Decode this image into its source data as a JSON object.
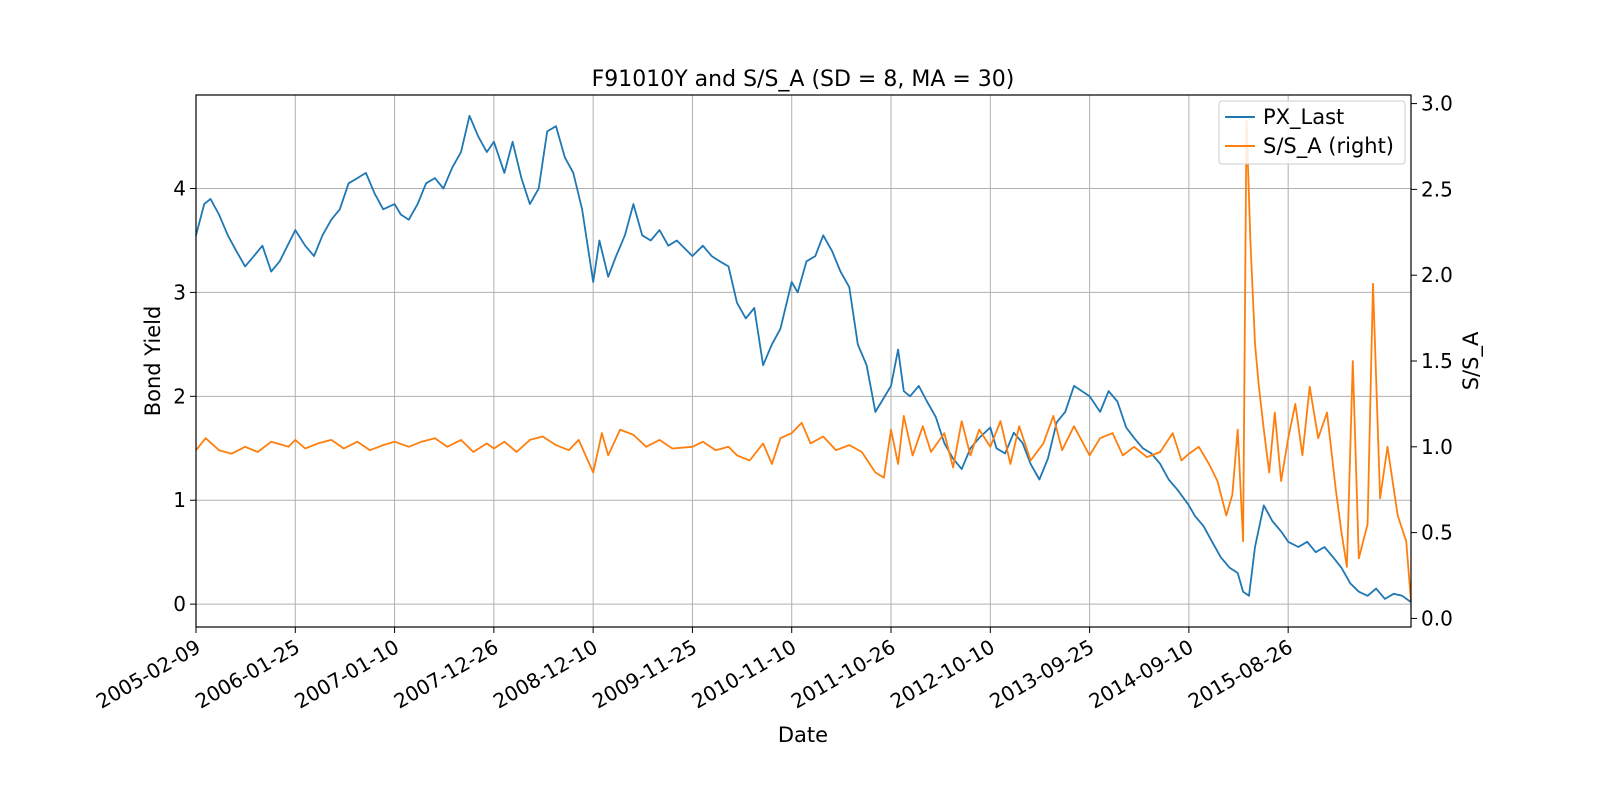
{
  "chart_data": {
    "type": "line",
    "title": "F91010Y and S/S_A (SD = 8, MA = 30)",
    "xlabel": "Date",
    "ylabel": "Bond Yield",
    "ylabel_right": "S/S_A",
    "x_ticks": [
      "2005-02-09",
      "2006-01-25",
      "2007-01-10",
      "2007-12-26",
      "2008-12-10",
      "2009-11-25",
      "2010-11-10",
      "2011-10-26",
      "2012-10-10",
      "2013-09-25",
      "2014-09-10",
      "2015-08-26"
    ],
    "xlim": [
      "2005-02-09",
      "2016-11-01"
    ],
    "ylim": [
      -0.22,
      4.9
    ],
    "ylim_right": [
      -0.05,
      3.05
    ],
    "y_ticks": [
      0,
      1,
      2,
      3,
      4
    ],
    "y_ticks_right": [
      0.0,
      0.5,
      1.0,
      1.5,
      2.0,
      2.5,
      3.0
    ],
    "grid": true,
    "legend_position": "top-right",
    "series": [
      {
        "name": "PX_Last",
        "axis": "left",
        "color": "#1f77b4",
        "points": [
          [
            "2005-02-09",
            3.55
          ],
          [
            "2005-03-10",
            3.85
          ],
          [
            "2005-04-01",
            3.9
          ],
          [
            "2005-05-01",
            3.75
          ],
          [
            "2005-06-01",
            3.55
          ],
          [
            "2005-07-01",
            3.4
          ],
          [
            "2005-08-01",
            3.25
          ],
          [
            "2005-09-01",
            3.35
          ],
          [
            "2005-10-01",
            3.45
          ],
          [
            "2005-11-01",
            3.2
          ],
          [
            "2005-12-01",
            3.3
          ],
          [
            "2006-01-25",
            3.6
          ],
          [
            "2006-03-01",
            3.45
          ],
          [
            "2006-04-01",
            3.35
          ],
          [
            "2006-05-01",
            3.55
          ],
          [
            "2006-06-01",
            3.7
          ],
          [
            "2006-07-01",
            3.8
          ],
          [
            "2006-08-01",
            4.05
          ],
          [
            "2006-09-01",
            4.1
          ],
          [
            "2006-10-01",
            4.15
          ],
          [
            "2006-11-01",
            3.95
          ],
          [
            "2006-12-01",
            3.8
          ],
          [
            "2007-01-10",
            3.85
          ],
          [
            "2007-02-01",
            3.75
          ],
          [
            "2007-03-01",
            3.7
          ],
          [
            "2007-04-01",
            3.85
          ],
          [
            "2007-05-01",
            4.05
          ],
          [
            "2007-06-01",
            4.1
          ],
          [
            "2007-07-01",
            4.0
          ],
          [
            "2007-08-01",
            4.2
          ],
          [
            "2007-09-01",
            4.35
          ],
          [
            "2007-10-01",
            4.7
          ],
          [
            "2007-11-01",
            4.5
          ],
          [
            "2007-12-01",
            4.35
          ],
          [
            "2007-12-26",
            4.45
          ],
          [
            "2008-02-01",
            4.15
          ],
          [
            "2008-03-01",
            4.45
          ],
          [
            "2008-04-01",
            4.1
          ],
          [
            "2008-05-01",
            3.85
          ],
          [
            "2008-06-01",
            4.0
          ],
          [
            "2008-07-01",
            4.55
          ],
          [
            "2008-08-01",
            4.6
          ],
          [
            "2008-09-01",
            4.3
          ],
          [
            "2008-10-01",
            4.15
          ],
          [
            "2008-11-01",
            3.8
          ],
          [
            "2008-12-10",
            3.1
          ],
          [
            "2009-01-01",
            3.5
          ],
          [
            "2009-02-01",
            3.15
          ],
          [
            "2009-03-01",
            3.35
          ],
          [
            "2009-04-01",
            3.55
          ],
          [
            "2009-05-01",
            3.85
          ],
          [
            "2009-06-01",
            3.55
          ],
          [
            "2009-07-01",
            3.5
          ],
          [
            "2009-08-01",
            3.6
          ],
          [
            "2009-09-01",
            3.45
          ],
          [
            "2009-10-01",
            3.5
          ],
          [
            "2009-11-25",
            3.35
          ],
          [
            "2010-01-01",
            3.45
          ],
          [
            "2010-02-01",
            3.35
          ],
          [
            "2010-03-01",
            3.3
          ],
          [
            "2010-04-01",
            3.25
          ],
          [
            "2010-05-01",
            2.9
          ],
          [
            "2010-06-01",
            2.75
          ],
          [
            "2010-07-01",
            2.85
          ],
          [
            "2010-08-01",
            2.3
          ],
          [
            "2010-09-01",
            2.5
          ],
          [
            "2010-10-01",
            2.65
          ],
          [
            "2010-11-10",
            3.1
          ],
          [
            "2010-12-01",
            3.0
          ],
          [
            "2011-01-01",
            3.3
          ],
          [
            "2011-02-01",
            3.35
          ],
          [
            "2011-03-01",
            3.55
          ],
          [
            "2011-04-01",
            3.4
          ],
          [
            "2011-05-01",
            3.2
          ],
          [
            "2011-06-01",
            3.05
          ],
          [
            "2011-07-01",
            2.5
          ],
          [
            "2011-08-01",
            2.3
          ],
          [
            "2011-09-01",
            1.85
          ],
          [
            "2011-10-26",
            2.1
          ],
          [
            "2011-11-20",
            2.45
          ],
          [
            "2011-12-10",
            2.05
          ],
          [
            "2012-01-01",
            2.0
          ],
          [
            "2012-02-01",
            2.1
          ],
          [
            "2012-03-01",
            1.95
          ],
          [
            "2012-04-01",
            1.8
          ],
          [
            "2012-05-01",
            1.55
          ],
          [
            "2012-06-01",
            1.4
          ],
          [
            "2012-07-01",
            1.3
          ],
          [
            "2012-08-01",
            1.5
          ],
          [
            "2012-09-01",
            1.6
          ],
          [
            "2012-10-10",
            1.7
          ],
          [
            "2012-11-01",
            1.5
          ],
          [
            "2012-12-01",
            1.45
          ],
          [
            "2013-01-01",
            1.65
          ],
          [
            "2013-02-01",
            1.55
          ],
          [
            "2013-03-01",
            1.35
          ],
          [
            "2013-04-01",
            1.2
          ],
          [
            "2013-05-01",
            1.4
          ],
          [
            "2013-06-01",
            1.75
          ],
          [
            "2013-07-01",
            1.85
          ],
          [
            "2013-08-01",
            2.1
          ],
          [
            "2013-09-25",
            2.0
          ],
          [
            "2013-11-01",
            1.85
          ],
          [
            "2013-12-01",
            2.05
          ],
          [
            "2014-01-01",
            1.95
          ],
          [
            "2014-02-01",
            1.7
          ],
          [
            "2014-03-01",
            1.6
          ],
          [
            "2014-04-01",
            1.5
          ],
          [
            "2014-05-01",
            1.45
          ],
          [
            "2014-06-01",
            1.35
          ],
          [
            "2014-07-01",
            1.2
          ],
          [
            "2014-08-01",
            1.1
          ],
          [
            "2014-09-10",
            0.95
          ],
          [
            "2014-10-01",
            0.85
          ],
          [
            "2014-11-01",
            0.75
          ],
          [
            "2014-12-01",
            0.6
          ],
          [
            "2015-01-01",
            0.45
          ],
          [
            "2015-02-01",
            0.35
          ],
          [
            "2015-03-01",
            0.3
          ],
          [
            "2015-03-20",
            0.12
          ],
          [
            "2015-04-10",
            0.08
          ],
          [
            "2015-05-01",
            0.55
          ],
          [
            "2015-06-01",
            0.95
          ],
          [
            "2015-07-01",
            0.8
          ],
          [
            "2015-08-01",
            0.7
          ],
          [
            "2015-08-26",
            0.6
          ],
          [
            "2015-10-01",
            0.55
          ],
          [
            "2015-11-01",
            0.6
          ],
          [
            "2015-12-01",
            0.5
          ],
          [
            "2016-01-01",
            0.55
          ],
          [
            "2016-02-01",
            0.45
          ],
          [
            "2016-03-01",
            0.35
          ],
          [
            "2016-04-01",
            0.2
          ],
          [
            "2016-05-01",
            0.12
          ],
          [
            "2016-06-01",
            0.08
          ],
          [
            "2016-07-01",
            0.15
          ],
          [
            "2016-08-01",
            0.05
          ],
          [
            "2016-09-01",
            0.1
          ],
          [
            "2016-10-01",
            0.08
          ],
          [
            "2016-11-01",
            0.02
          ]
        ]
      },
      {
        "name": "S/S_A (right)",
        "axis": "right",
        "color": "#ff7f0e",
        "points": [
          [
            "2005-02-09",
            0.98
          ],
          [
            "2005-03-15",
            1.05
          ],
          [
            "2005-05-01",
            0.98
          ],
          [
            "2005-06-15",
            0.96
          ],
          [
            "2005-08-01",
            1.0
          ],
          [
            "2005-09-15",
            0.97
          ],
          [
            "2005-11-01",
            1.03
          ],
          [
            "2006-01-01",
            1.0
          ],
          [
            "2006-01-25",
            1.04
          ],
          [
            "2006-03-01",
            0.99
          ],
          [
            "2006-04-15",
            1.02
          ],
          [
            "2006-06-01",
            1.04
          ],
          [
            "2006-07-15",
            0.99
          ],
          [
            "2006-09-01",
            1.03
          ],
          [
            "2006-10-15",
            0.98
          ],
          [
            "2006-12-01",
            1.01
          ],
          [
            "2007-01-10",
            1.03
          ],
          [
            "2007-03-01",
            1.0
          ],
          [
            "2007-04-15",
            1.03
          ],
          [
            "2007-06-01",
            1.05
          ],
          [
            "2007-07-15",
            1.0
          ],
          [
            "2007-09-01",
            1.04
          ],
          [
            "2007-10-15",
            0.97
          ],
          [
            "2007-12-01",
            1.02
          ],
          [
            "2007-12-26",
            0.99
          ],
          [
            "2008-02-01",
            1.03
          ],
          [
            "2008-03-15",
            0.97
          ],
          [
            "2008-05-01",
            1.04
          ],
          [
            "2008-06-15",
            1.06
          ],
          [
            "2008-08-01",
            1.01
          ],
          [
            "2008-09-15",
            0.98
          ],
          [
            "2008-10-20",
            1.04
          ],
          [
            "2008-12-10",
            0.85
          ],
          [
            "2009-01-10",
            1.08
          ],
          [
            "2009-02-01",
            0.95
          ],
          [
            "2009-03-15",
            1.1
          ],
          [
            "2009-05-01",
            1.07
          ],
          [
            "2009-06-15",
            1.0
          ],
          [
            "2009-08-01",
            1.04
          ],
          [
            "2009-09-15",
            0.99
          ],
          [
            "2009-11-25",
            1.0
          ],
          [
            "2010-01-01",
            1.03
          ],
          [
            "2010-02-15",
            0.98
          ],
          [
            "2010-04-01",
            1.0
          ],
          [
            "2010-05-01",
            0.95
          ],
          [
            "2010-06-15",
            0.92
          ],
          [
            "2010-08-01",
            1.02
          ],
          [
            "2010-09-01",
            0.9
          ],
          [
            "2010-10-01",
            1.05
          ],
          [
            "2010-11-10",
            1.08
          ],
          [
            "2010-12-15",
            1.14
          ],
          [
            "2011-01-15",
            1.02
          ],
          [
            "2011-03-01",
            1.06
          ],
          [
            "2011-04-15",
            0.98
          ],
          [
            "2011-06-01",
            1.01
          ],
          [
            "2011-07-15",
            0.97
          ],
          [
            "2011-09-01",
            0.85
          ],
          [
            "2011-10-01",
            0.82
          ],
          [
            "2011-10-26",
            1.1
          ],
          [
            "2011-11-20",
            0.9
          ],
          [
            "2011-12-10",
            1.18
          ],
          [
            "2012-01-10",
            0.95
          ],
          [
            "2012-02-15",
            1.12
          ],
          [
            "2012-03-15",
            0.97
          ],
          [
            "2012-05-01",
            1.08
          ],
          [
            "2012-06-01",
            0.88
          ],
          [
            "2012-07-01",
            1.15
          ],
          [
            "2012-08-01",
            0.95
          ],
          [
            "2012-09-01",
            1.1
          ],
          [
            "2012-10-10",
            1.0
          ],
          [
            "2012-11-15",
            1.15
          ],
          [
            "2012-12-20",
            0.9
          ],
          [
            "2013-01-20",
            1.12
          ],
          [
            "2013-03-01",
            0.92
          ],
          [
            "2013-04-15",
            1.02
          ],
          [
            "2013-05-20",
            1.18
          ],
          [
            "2013-06-20",
            0.98
          ],
          [
            "2013-08-01",
            1.12
          ],
          [
            "2013-09-25",
            0.95
          ],
          [
            "2013-11-01",
            1.05
          ],
          [
            "2013-12-15",
            1.08
          ],
          [
            "2014-01-20",
            0.95
          ],
          [
            "2014-03-01",
            1.0
          ],
          [
            "2014-04-15",
            0.94
          ],
          [
            "2014-06-01",
            0.97
          ],
          [
            "2014-07-15",
            1.08
          ],
          [
            "2014-08-15",
            0.92
          ],
          [
            "2014-09-10",
            0.96
          ],
          [
            "2014-10-15",
            1.0
          ],
          [
            "2014-11-20",
            0.9
          ],
          [
            "2014-12-20",
            0.8
          ],
          [
            "2015-01-20",
            0.6
          ],
          [
            "2015-02-10",
            0.72
          ],
          [
            "2015-03-01",
            1.1
          ],
          [
            "2015-03-20",
            0.45
          ],
          [
            "2015-04-01",
            2.9
          ],
          [
            "2015-04-15",
            2.2
          ],
          [
            "2015-05-01",
            1.6
          ],
          [
            "2015-05-15",
            1.35
          ],
          [
            "2015-06-01",
            1.1
          ],
          [
            "2015-06-20",
            0.85
          ],
          [
            "2015-07-10",
            1.2
          ],
          [
            "2015-08-01",
            0.8
          ],
          [
            "2015-08-26",
            1.05
          ],
          [
            "2015-09-20",
            1.25
          ],
          [
            "2015-10-15",
            0.95
          ],
          [
            "2015-11-10",
            1.35
          ],
          [
            "2015-12-10",
            1.05
          ],
          [
            "2016-01-10",
            1.2
          ],
          [
            "2016-02-10",
            0.75
          ],
          [
            "2016-03-01",
            0.5
          ],
          [
            "2016-03-20",
            0.3
          ],
          [
            "2016-04-10",
            1.5
          ],
          [
            "2016-05-01",
            0.35
          ],
          [
            "2016-06-01",
            0.55
          ],
          [
            "2016-06-20",
            1.95
          ],
          [
            "2016-07-15",
            0.7
          ],
          [
            "2016-08-10",
            1.0
          ],
          [
            "2016-09-15",
            0.6
          ],
          [
            "2016-10-15",
            0.45
          ],
          [
            "2016-11-01",
            0.1
          ]
        ]
      }
    ]
  }
}
